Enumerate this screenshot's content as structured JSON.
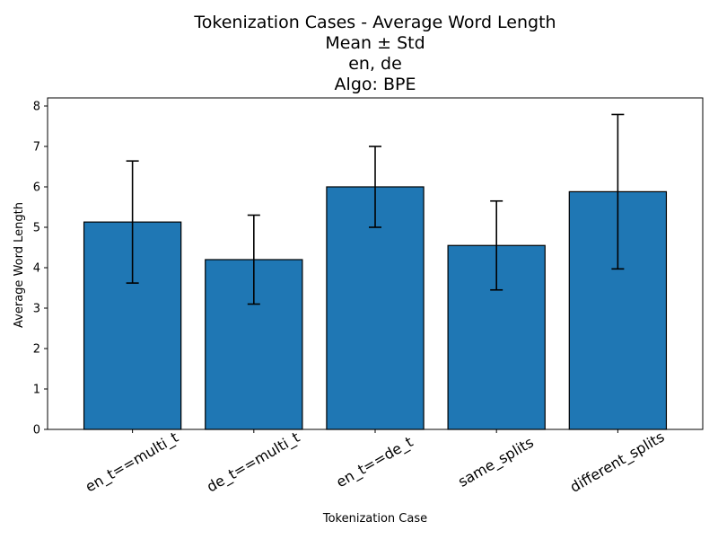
{
  "chart_data": {
    "type": "bar",
    "title_lines": [
      "Tokenization Cases - Average Word Length",
      "Mean ± Std",
      "en, de",
      "Algo: BPE"
    ],
    "xlabel": "Tokenization Case",
    "ylabel": "Average Word Length",
    "categories": [
      "en_t==multi_t",
      "de_t==multi_t",
      "en_t==de_t",
      "same_splits",
      "different_splits"
    ],
    "values": [
      5.13,
      4.2,
      6.0,
      4.55,
      5.88
    ],
    "errors": [
      1.51,
      1.1,
      1.0,
      1.1,
      1.91
    ],
    "ylim": [
      0,
      8.2
    ],
    "yticks": [
      0,
      1,
      2,
      3,
      4,
      5,
      6,
      7,
      8
    ],
    "grid": false,
    "bar_color": "#1f77b4",
    "edge_color": "#000000",
    "error_color": "#000000"
  }
}
